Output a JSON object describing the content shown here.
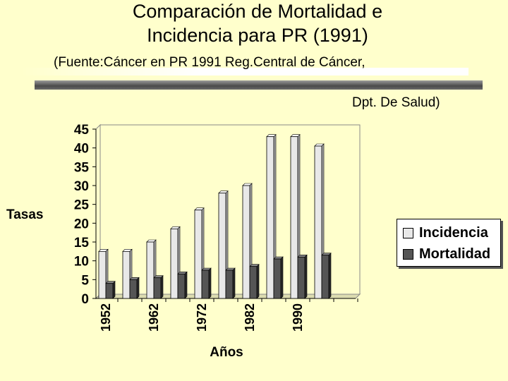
{
  "slide": {
    "title_line1": "Comparación de Mortalidad e",
    "title_line2": "Incidencia para PR (1991)",
    "source_line1": "(Fuente:Cáncer en PR 1991 Reg.Central de Cáncer,",
    "source_line2": "Dpt. De Salud)"
  },
  "chart_data": {
    "type": "bar",
    "title": "",
    "xlabel": "Años",
    "ylabel": "Tasas",
    "ylim": [
      0,
      45
    ],
    "yticks": [
      0,
      5,
      10,
      15,
      20,
      25,
      30,
      35,
      40,
      45
    ],
    "categories": [
      "1952",
      "",
      "1962",
      "",
      "1972",
      "",
      "1982",
      "",
      "1990",
      "",
      ""
    ],
    "series": [
      {
        "name": "Incidencia",
        "color": "#E8E8E8",
        "values": [
          12.5,
          12.5,
          15,
          18.5,
          23.5,
          28,
          30,
          43,
          43,
          40.5,
          null
        ]
      },
      {
        "name": "Mortalidad",
        "color": "#555555",
        "values": [
          4,
          5,
          5.5,
          6.5,
          7.5,
          7.5,
          8.5,
          10.5,
          11,
          11.5,
          null
        ]
      }
    ],
    "grid": false,
    "legend_position": "right"
  }
}
